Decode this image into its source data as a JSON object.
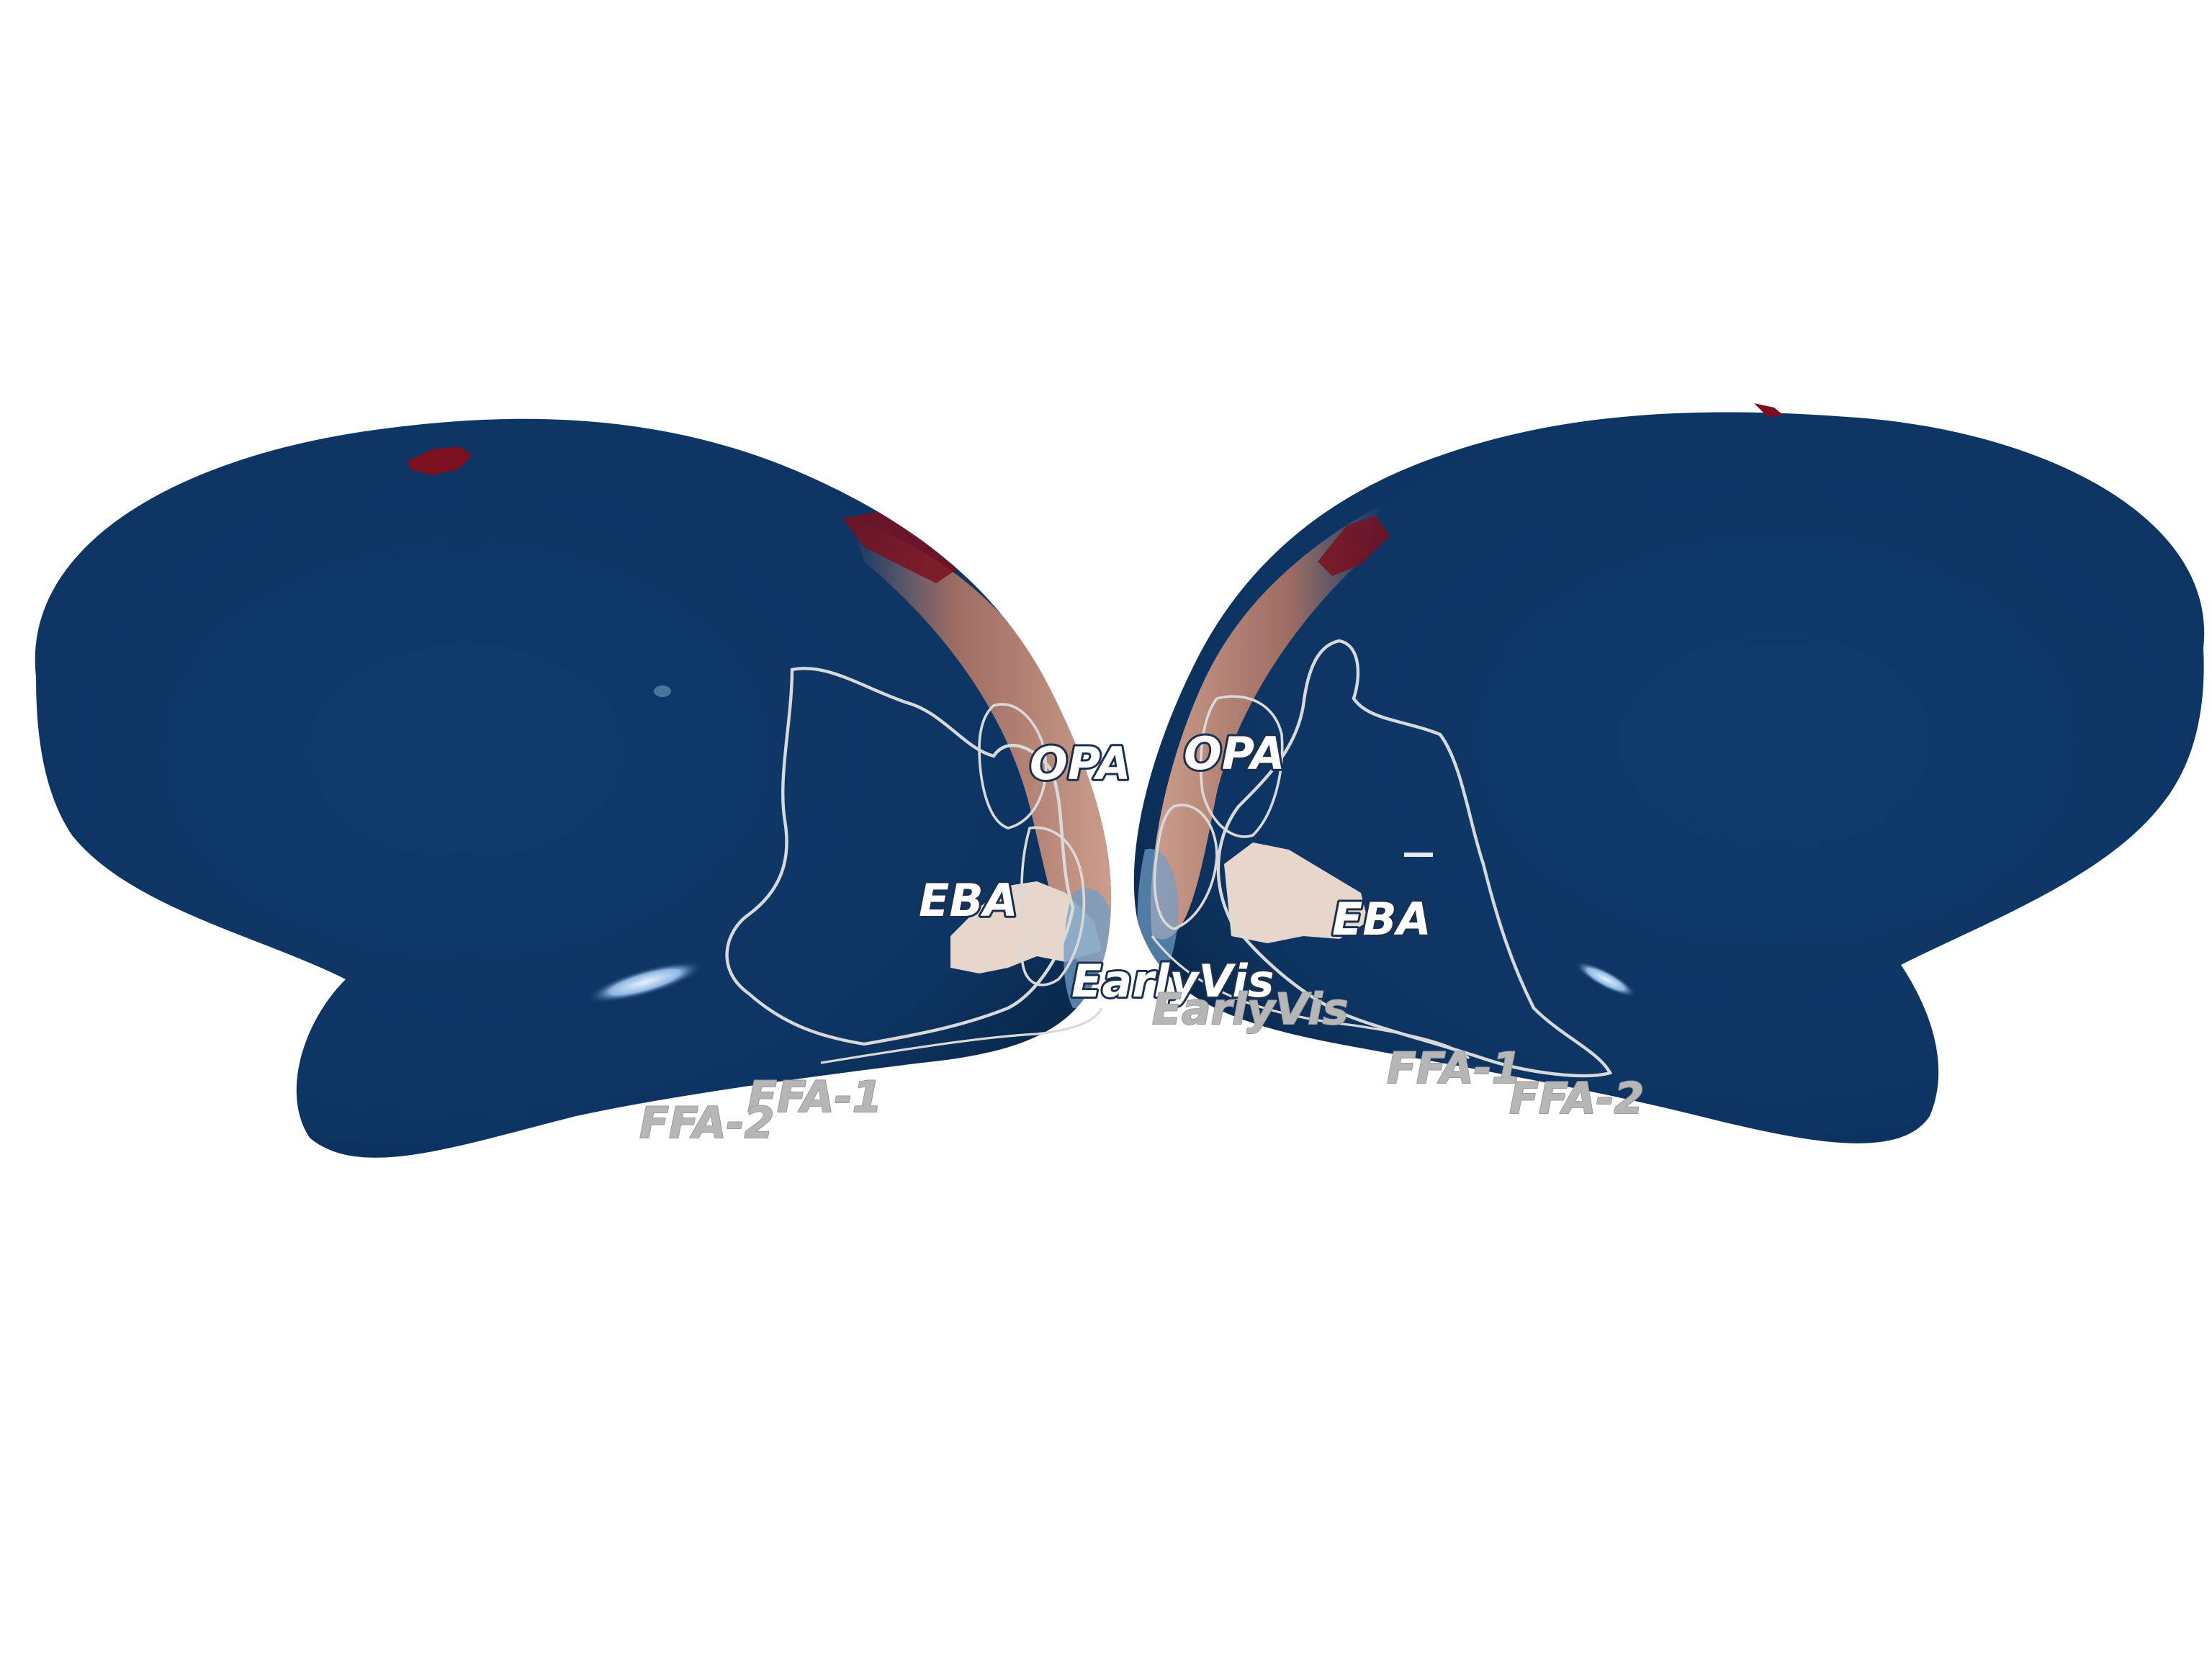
{
  "colors": {
    "background": "#ffffff",
    "cortex": "#0d3563",
    "cortex_shadow": "#071d3a",
    "positive_high": "#7a1020",
    "positive_mid": "#c48a76",
    "positive_low": "#e2cfc5",
    "negative_low": "#a6c8e6",
    "roi_outline": "#d9d9d9"
  },
  "hemispheres": [
    {
      "side": "left-lateral",
      "labels": {
        "opa": "OPA",
        "eba": "EBA",
        "earlyvis": "EarlyVis",
        "ffa1": "FFA-1",
        "ffa2": "FFA-2"
      }
    },
    {
      "side": "right-lateral",
      "labels": {
        "opa": "OPA",
        "eba": "EBA",
        "earlyvis": "EarlyVis",
        "ffa1": "FFA-1",
        "ffa2": "FFA-2"
      }
    }
  ]
}
